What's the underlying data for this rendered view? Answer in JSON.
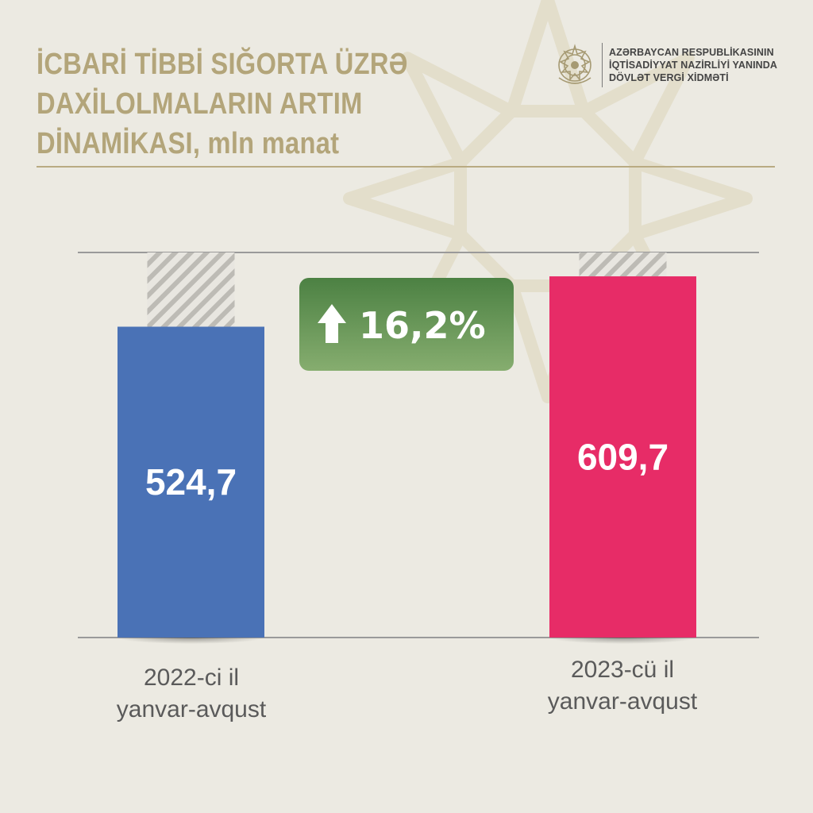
{
  "title_lines": [
    "İCBARİ TİBBİ SIĞORTA ÜZRƏ",
    "DAXİLOLMALARIN ARTIM",
    "DİNAMİKASI, mln manat"
  ],
  "org_lines": [
    "AZƏRBAYCAN RESPUBLİKASININ",
    "İQTİSADİYYAT NAZİRLİYİ YANINDA",
    "DÖVLƏT VERGİ XİDMƏTİ"
  ],
  "colors": {
    "bar_2022": "#4a72b6",
    "bar_2023": "#e72c67",
    "growth_badge": "#5a9650",
    "title": "#b3a57a"
  },
  "icons": [
    "state-emblem-icon",
    "up-arrow-icon",
    "star-ornament-icon"
  ],
  "chart_data": {
    "type": "bar",
    "title": "İCBARİ TİBBİ SIĞORTA ÜZRƏ DAXİLOLMALARIN ARTIM DİNAMİKASI, mln manat",
    "categories": [
      [
        "2022-ci il",
        "yanvar-avqust"
      ],
      [
        "2023-cü il",
        "yanvar-avqust"
      ]
    ],
    "values": [
      524.7,
      609.7
    ],
    "value_labels": [
      "524,7",
      "609,7"
    ],
    "ylim": [
      0,
      650
    ],
    "growth": "16,2%",
    "xlabel": "",
    "ylabel": "",
    "grid": false
  }
}
